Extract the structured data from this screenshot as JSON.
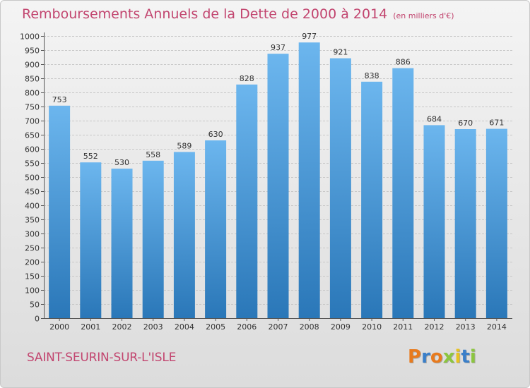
{
  "header": {
    "title": "Remboursements Annuels de la Dette de 2000 à 2014",
    "subtitle": "(en milliers d'€)"
  },
  "footer": {
    "commune": "SAINT-SEURIN-SUR-L'ISLE",
    "logo_text": "Proxiti",
    "logo_letters": [
      "P",
      "r",
      "o",
      "x",
      "i",
      "t",
      "i"
    ],
    "logo_colors": [
      "#e87b1e",
      "#3a7fc9",
      "#e87b1e",
      "#8cc63f",
      "#e8c21e",
      "#3a7fc9",
      "#8cc63f"
    ]
  },
  "colors": {
    "bar_light": "#6cb6ee",
    "bar_dark": "#2a77b8",
    "title": "#c2456f",
    "grid": "#c8c8c8"
  },
  "chart_data": {
    "type": "bar",
    "title": "Remboursements Annuels de la Dette de 2000 à 2014",
    "subtitle": "(en milliers d'€)",
    "categories": [
      "2000",
      "2001",
      "2002",
      "2003",
      "2004",
      "2005",
      "2006",
      "2007",
      "2008",
      "2009",
      "2010",
      "2011",
      "2012",
      "2013",
      "2014"
    ],
    "values": [
      753,
      552,
      530,
      558,
      589,
      630,
      828,
      937,
      977,
      921,
      838,
      886,
      684,
      670,
      671
    ],
    "ylim": [
      0,
      1000
    ],
    "ytick_step": 50,
    "grid": true,
    "xlabel": "",
    "ylabel": ""
  }
}
